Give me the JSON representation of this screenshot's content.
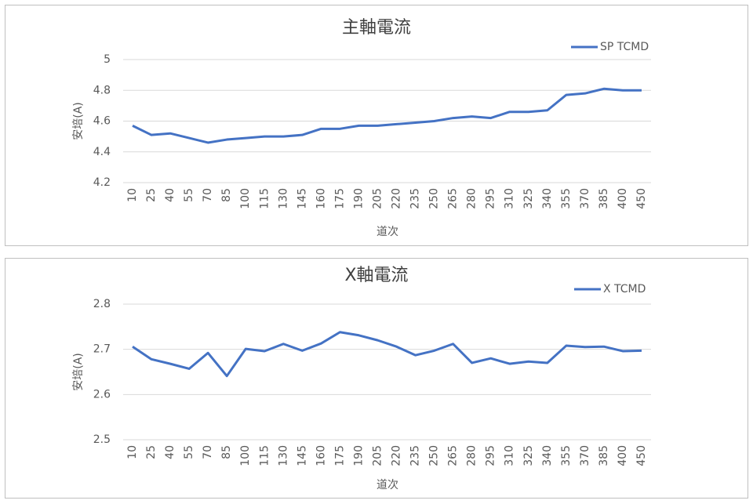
{
  "chart_data": [
    {
      "type": "line",
      "title": "主軸電流",
      "y_label": "安培(A)",
      "x_label": "道次",
      "categories": [
        "10",
        "25",
        "40",
        "55",
        "70",
        "85",
        "100",
        "115",
        "130",
        "145",
        "160",
        "175",
        "190",
        "205",
        "220",
        "235",
        "250",
        "265",
        "280",
        "295",
        "310",
        "325",
        "340",
        "355",
        "370",
        "385",
        "400",
        "450"
      ],
      "series": [
        {
          "name": "SP TCMD",
          "color": "#4472c4",
          "values": [
            4.57,
            4.51,
            4.52,
            4.49,
            4.46,
            4.48,
            4.49,
            4.5,
            4.5,
            4.51,
            4.55,
            4.55,
            4.57,
            4.57,
            4.58,
            4.59,
            4.6,
            4.62,
            4.63,
            4.62,
            4.66,
            4.66,
            4.67,
            4.77,
            4.78,
            4.81,
            4.8,
            4.8
          ]
        }
      ],
      "ylim": [
        4.2,
        5
      ],
      "yticks": [
        4.2,
        4.4,
        4.6,
        4.8,
        5
      ],
      "grid": true,
      "legend": "top-right"
    },
    {
      "type": "line",
      "title": "X軸電流",
      "y_label": "安培(A)",
      "x_label": "道次",
      "categories": [
        "10",
        "25",
        "40",
        "55",
        "70",
        "85",
        "100",
        "115",
        "130",
        "145",
        "160",
        "175",
        "190",
        "205",
        "220",
        "235",
        "250",
        "265",
        "280",
        "295",
        "310",
        "325",
        "340",
        "355",
        "370",
        "385",
        "400",
        "450"
      ],
      "series": [
        {
          "name": "X TCMD",
          "color": "#4472c4",
          "values": [
            2.706,
            2.678,
            2.668,
            2.657,
            2.692,
            2.641,
            2.701,
            2.696,
            2.712,
            2.697,
            2.713,
            2.738,
            2.731,
            2.72,
            2.706,
            2.687,
            2.697,
            2.712,
            2.67,
            2.68,
            2.668,
            2.673,
            2.67,
            2.708,
            2.705,
            2.706,
            2.696,
            2.697
          ]
        }
      ],
      "ylim": [
        2.5,
        2.8
      ],
      "yticks": [
        2.5,
        2.6,
        2.7,
        2.8
      ],
      "grid": true,
      "legend": "top-right"
    }
  ]
}
